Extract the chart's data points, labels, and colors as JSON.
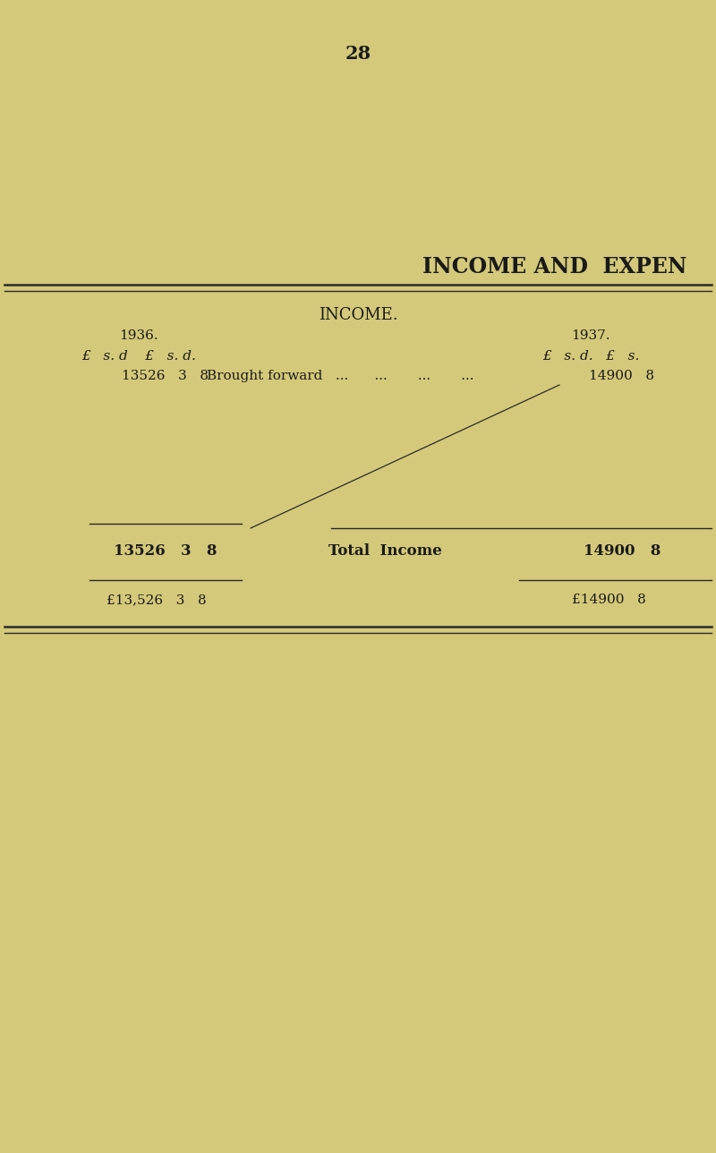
{
  "background_color": "#d4c97a",
  "page_number": "28",
  "title": "INCOME AND  EXPEN",
  "section_header": "INCOME.",
  "year_left": "1936.",
  "year_right": "1937.",
  "col_headers_left": "£   s. d    £   s. d.",
  "col_headers_right": "£   s. d.   £   s.",
  "entry_left_val": "13526   3   8",
  "entry_label": "Brought forward   ...      ...       ...       ...",
  "entry_right_val": "14900   8",
  "total_left_val": "13526   3   8",
  "total_label": "Total  Income",
  "total_right_val": "14900   8",
  "final_left_val": "£13,526   3   8",
  "final_right_val": "£14900   8",
  "text_color": "#1a1a1a",
  "line_color": "#2a2a2a",
  "font_size_title": 17,
  "font_size_page": 15,
  "font_size_section": 13,
  "font_size_body": 11,
  "font_size_total": 12
}
